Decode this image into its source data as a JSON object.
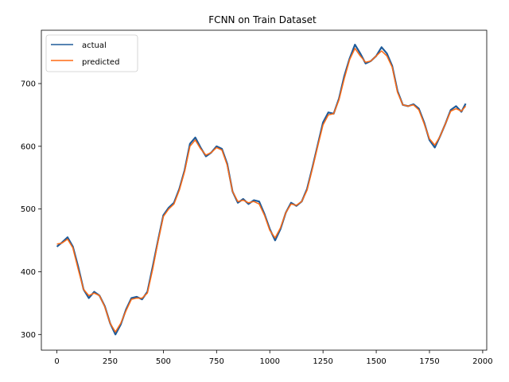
{
  "chart_data": {
    "type": "line",
    "title": "FCNN on Train Dataset",
    "xlabel": "",
    "ylabel": "",
    "xlim": [
      -73,
      2019
    ],
    "ylim": [
      275,
      785
    ],
    "x_ticks": [
      0,
      250,
      500,
      750,
      1000,
      1250,
      1500,
      1750,
      2000
    ],
    "y_ticks": [
      300,
      400,
      500,
      600,
      700
    ],
    "grid": false,
    "legend_position": "top-left",
    "x": [
      0,
      25,
      50,
      75,
      100,
      125,
      150,
      175,
      200,
      225,
      250,
      275,
      300,
      325,
      350,
      375,
      400,
      425,
      450,
      475,
      500,
      525,
      550,
      575,
      600,
      625,
      650,
      675,
      700,
      725,
      750,
      775,
      800,
      825,
      850,
      875,
      900,
      925,
      950,
      975,
      1000,
      1025,
      1050,
      1075,
      1100,
      1125,
      1150,
      1175,
      1200,
      1225,
      1250,
      1275,
      1300,
      1325,
      1350,
      1375,
      1400,
      1425,
      1450,
      1475,
      1500,
      1525,
      1550,
      1575,
      1600,
      1625,
      1650,
      1675,
      1700,
      1725,
      1750,
      1775,
      1800,
      1825,
      1850,
      1875,
      1900,
      1920
    ],
    "series": [
      {
        "name": "actual",
        "color": "#1f5b99",
        "values": [
          440,
          447,
          455,
          440,
          408,
          372,
          358,
          368,
          362,
          345,
          318,
          300,
          316,
          340,
          358,
          360,
          356,
          368,
          408,
          450,
          490,
          502,
          510,
          532,
          562,
          604,
          614,
          598,
          584,
          590,
          600,
          596,
          572,
          528,
          510,
          516,
          508,
          514,
          512,
          492,
          468,
          450,
          468,
          494,
          510,
          505,
          512,
          532,
          566,
          602,
          638,
          654,
          652,
          676,
          712,
          740,
          762,
          748,
          732,
          736,
          744,
          758,
          748,
          728,
          688,
          666,
          664,
          667,
          660,
          638,
          610,
          598,
          616,
          636,
          658,
          664,
          655,
          668
        ]
      },
      {
        "name": "predicted",
        "color": "#ff6a13",
        "values": [
          444,
          446,
          452,
          438,
          404,
          372,
          362,
          366,
          362,
          344,
          318,
          304,
          318,
          338,
          356,
          358,
          358,
          366,
          404,
          448,
          488,
          500,
          508,
          530,
          560,
          600,
          610,
          596,
          586,
          590,
          598,
          594,
          570,
          528,
          512,
          514,
          510,
          512,
          508,
          490,
          466,
          454,
          470,
          494,
          508,
          506,
          512,
          530,
          564,
          600,
          634,
          650,
          652,
          674,
          708,
          738,
          756,
          744,
          734,
          736,
          744,
          752,
          744,
          726,
          686,
          666,
          664,
          666,
          658,
          636,
          612,
          602,
          616,
          636,
          656,
          660,
          656,
          664
        ]
      }
    ]
  }
}
